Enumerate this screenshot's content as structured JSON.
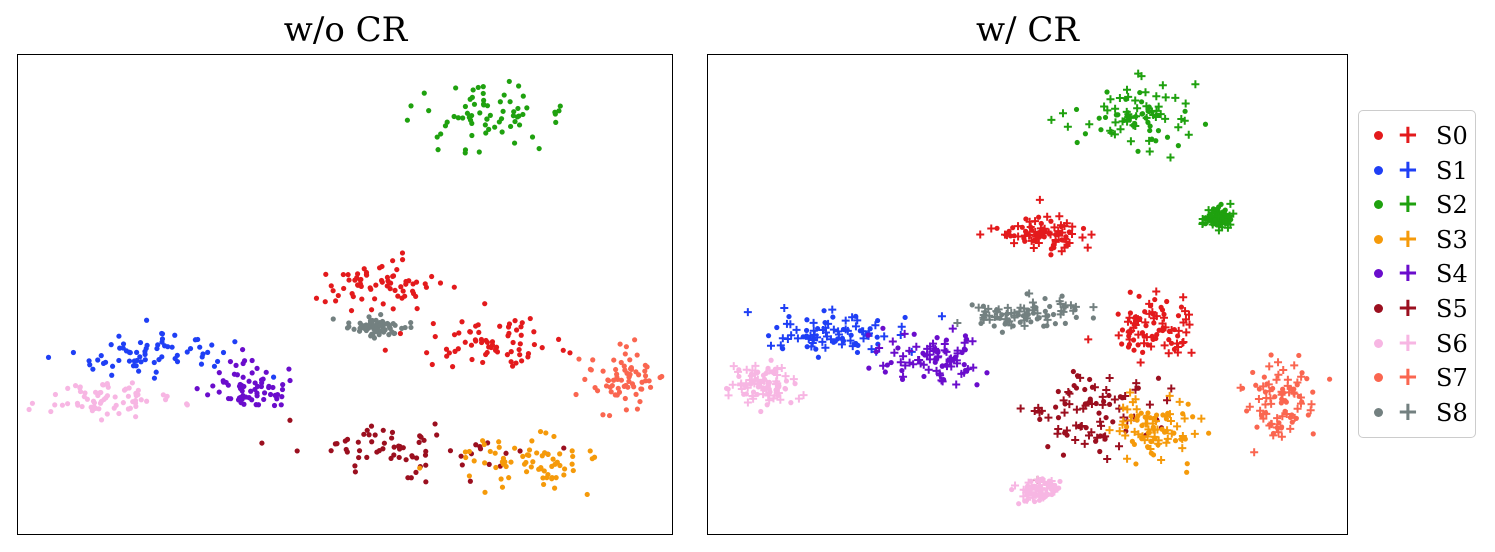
{
  "chart_data": [
    {
      "type": "scatter",
      "title": "w/o CR",
      "markers": [
        "dot"
      ],
      "xlim": [
        0,
        100
      ],
      "ylim": [
        0,
        100
      ],
      "grid": false,
      "clusters": [
        {
          "series": "S2",
          "x": 71,
          "y": 86,
          "spread": [
            10,
            7
          ]
        },
        {
          "series": "S1",
          "x": 20,
          "y": 38,
          "spread": [
            12,
            5
          ]
        },
        {
          "series": "S6",
          "x": 13,
          "y": 28,
          "spread": [
            9,
            3
          ]
        },
        {
          "series": "S4",
          "x": 35,
          "y": 31,
          "spread": [
            6,
            5
          ]
        },
        {
          "series": "S0",
          "x": 55,
          "y": 52,
          "spread": [
            8,
            4
          ]
        },
        {
          "series": "S0",
          "x": 72,
          "y": 40,
          "spread": [
            10,
            5
          ]
        },
        {
          "series": "S8",
          "x": 55,
          "y": 43,
          "spread": [
            4,
            2
          ]
        },
        {
          "series": "S5",
          "x": 60,
          "y": 17,
          "spread": [
            15,
            6
          ]
        },
        {
          "series": "S3",
          "x": 78,
          "y": 15,
          "spread": [
            10,
            5
          ]
        },
        {
          "series": "S7",
          "x": 92,
          "y": 32,
          "spread": [
            5,
            6
          ]
        }
      ]
    },
    {
      "type": "scatter",
      "title": "w/ CR",
      "markers": [
        "dot",
        "plus"
      ],
      "xlim": [
        0,
        100
      ],
      "ylim": [
        0,
        100
      ],
      "grid": false,
      "clusters": [
        {
          "series": "S2",
          "x": 68,
          "y": 87,
          "spread": [
            8,
            6
          ]
        },
        {
          "series": "S2",
          "x": 80,
          "y": 66,
          "spread": [
            2,
            2
          ]
        },
        {
          "series": "S0",
          "x": 52,
          "y": 63,
          "spread": [
            6,
            4
          ]
        },
        {
          "series": "S0",
          "x": 70,
          "y": 43,
          "spread": [
            6,
            6
          ]
        },
        {
          "series": "S1",
          "x": 20,
          "y": 42,
          "spread": [
            9,
            4
          ]
        },
        {
          "series": "S6",
          "x": 9,
          "y": 31,
          "spread": [
            5,
            4
          ]
        },
        {
          "series": "S4",
          "x": 35,
          "y": 37,
          "spread": [
            8,
            5
          ]
        },
        {
          "series": "S8",
          "x": 50,
          "y": 46,
          "spread": [
            8,
            3
          ]
        },
        {
          "series": "S5",
          "x": 60,
          "y": 25,
          "spread": [
            10,
            8
          ]
        },
        {
          "series": "S3",
          "x": 70,
          "y": 22,
          "spread": [
            6,
            6
          ]
        },
        {
          "series": "S7",
          "x": 89,
          "y": 28,
          "spread": [
            5,
            7
          ]
        },
        {
          "series": "S6",
          "x": 52,
          "y": 9,
          "spread": [
            3,
            2
          ]
        }
      ]
    }
  ],
  "legend": {
    "placement": "right",
    "items": [
      {
        "label": "S0",
        "color": "#e31a1c"
      },
      {
        "label": "S1",
        "color": "#1f3ff5"
      },
      {
        "label": "S2",
        "color": "#1fa10f"
      },
      {
        "label": "S3",
        "color": "#f59a0a"
      },
      {
        "label": "S4",
        "color": "#6a0dcc"
      },
      {
        "label": "S5",
        "color": "#9b0f1f"
      },
      {
        "label": "S6",
        "color": "#f7b6e3"
      },
      {
        "label": "S7",
        "color": "#fa6650"
      },
      {
        "label": "S8",
        "color": "#738080"
      }
    ]
  }
}
